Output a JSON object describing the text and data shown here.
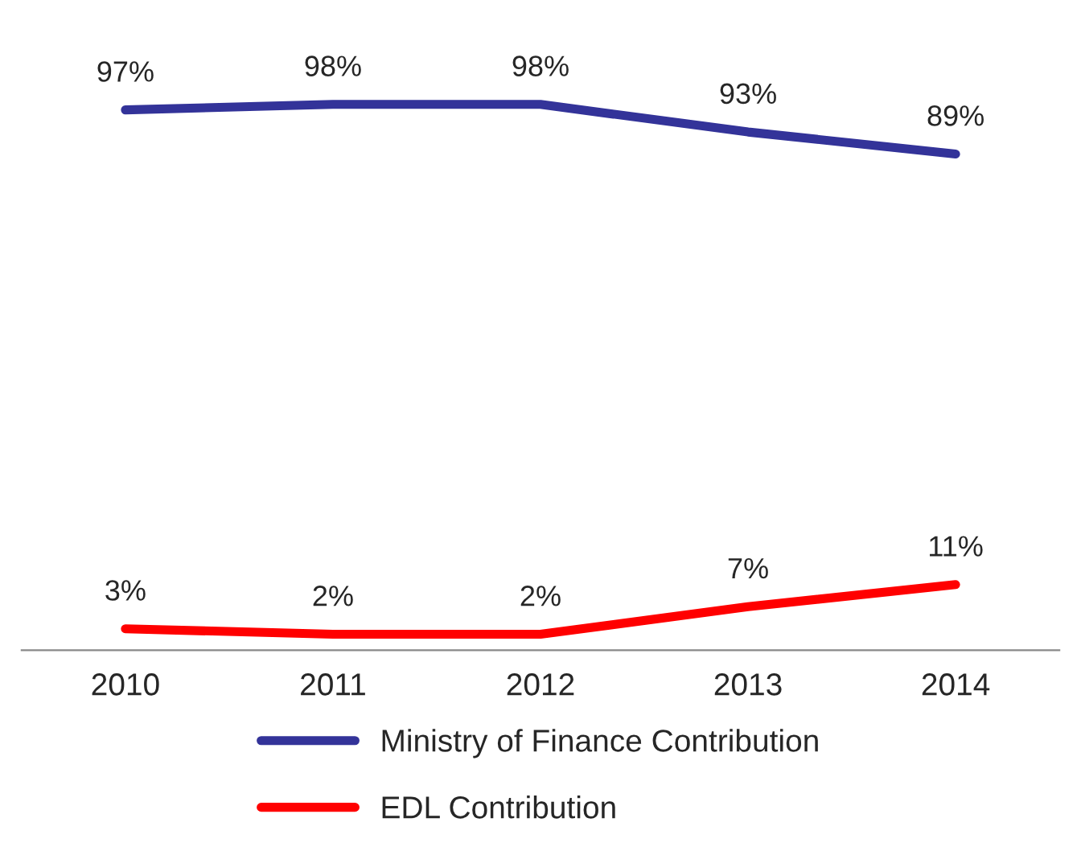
{
  "chart_data": {
    "type": "line",
    "categories": [
      "2010",
      "2011",
      "2012",
      "2013",
      "2014"
    ],
    "series": [
      {
        "name": "Ministry of Finance Contribution",
        "color": "#333399",
        "values": [
          97,
          98,
          98,
          93,
          89
        ],
        "value_labels": [
          "97%",
          "98%",
          "98%",
          "93%",
          "89%"
        ]
      },
      {
        "name": "EDL Contribution",
        "color": "#ff0000",
        "values": [
          3,
          2,
          2,
          7,
          11
        ],
        "value_labels": [
          "3%",
          "2%",
          "2%",
          "7%",
          "11%"
        ]
      }
    ],
    "tick_labels": "x",
    "legend": "bottom",
    "grid": false,
    "marker": "none",
    "line_style": "solid"
  }
}
